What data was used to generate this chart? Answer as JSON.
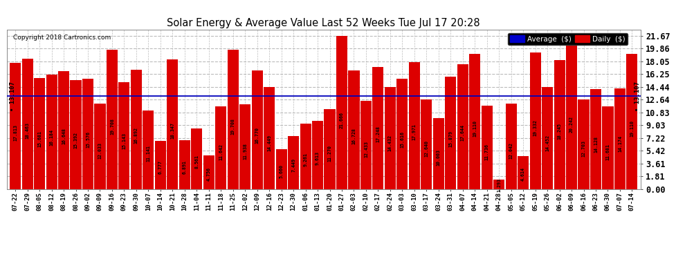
{
  "title": "Solar Energy & Average Value Last 52 Weeks Tue Jul 17 20:28",
  "copyright": "Copyright 2018 Cartronics.com",
  "average_line": 13.107,
  "average_label": "• 13.107",
  "bar_color": "#dd0000",
  "average_line_color": "#0000bb",
  "background_color": "#ffffff",
  "grid_color": "#bbbbbb",
  "ylim_max": 22.5,
  "yticks": [
    0.0,
    1.81,
    3.61,
    5.42,
    7.22,
    9.03,
    10.83,
    12.64,
    14.44,
    16.25,
    18.05,
    19.86,
    21.67
  ],
  "categories": [
    "07-22",
    "07-29",
    "08-05",
    "08-12",
    "08-19",
    "08-26",
    "09-02",
    "09-09",
    "09-16",
    "09-23",
    "09-30",
    "10-07",
    "10-14",
    "10-21",
    "10-28",
    "11-04",
    "11-11",
    "11-18",
    "11-25",
    "12-02",
    "12-09",
    "12-16",
    "12-23",
    "12-30",
    "01-06",
    "01-13",
    "01-20",
    "01-27",
    "02-03",
    "02-10",
    "02-17",
    "02-24",
    "03-03",
    "03-10",
    "03-17",
    "03-24",
    "03-31",
    "04-07",
    "04-14",
    "04-21",
    "04-28",
    "05-05",
    "05-12",
    "05-19",
    "05-26",
    "06-02",
    "06-09",
    "06-16",
    "06-23",
    "06-30",
    "07-07",
    "07-14"
  ],
  "values": [
    17.813,
    18.463,
    15.681,
    16.184,
    16.648,
    15.392,
    15.576,
    12.033,
    19.708,
    15.143,
    16.892,
    11.141,
    6.777,
    18.347,
    6.891,
    8.561,
    4.756,
    11.642,
    19.708,
    11.938,
    16.77,
    14.449,
    5.66,
    7.449,
    9.261,
    9.613,
    11.27,
    21.666,
    16.728,
    12.433,
    17.248,
    14.432,
    15.616,
    17.971,
    12.64,
    10.003,
    15.879,
    17.644,
    19.11,
    11.736,
    1.293,
    12.042,
    4.614,
    19.332,
    14.452,
    18.245,
    20.242,
    12.703,
    14.128,
    11.681,
    14.174,
    19.11
  ],
  "legend_avg_color": "#0000cc",
  "legend_daily_color": "#dd0000",
  "legend_avg_label": "Average  ($)",
  "legend_daily_label": "Daily  ($)"
}
